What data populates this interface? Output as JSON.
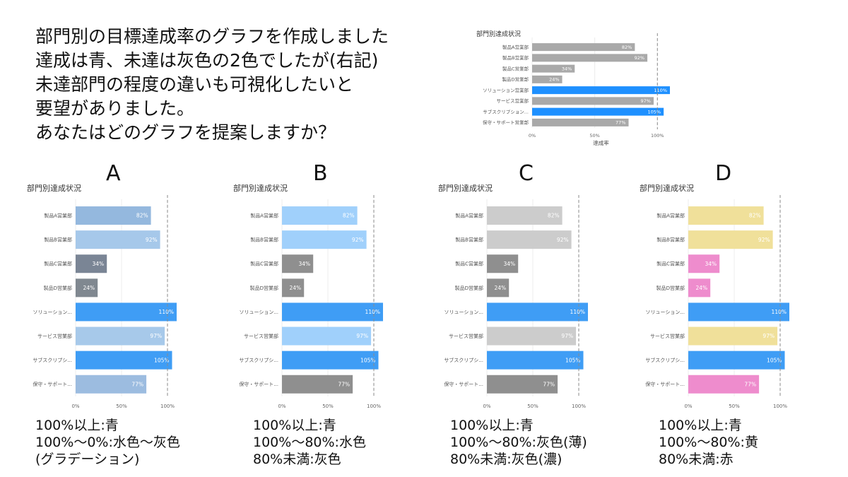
{
  "question": {
    "lines": [
      "部門別の目標達成率のグラフを作成しました",
      "達成は青、未達は灰色の2色でしたが(右記)",
      "未達部門の程度の違いも可視化したいと",
      "要望がありました。",
      "あなたはどのグラフを提案しますか？"
    ]
  },
  "chart_data": [
    {
      "id": "original",
      "type": "bar",
      "orientation": "horizontal",
      "title": "部門別達成状況",
      "xlabel": "達成率",
      "categories": [
        "製品A営業部",
        "製品B営業部",
        "製品C営業部",
        "製品D営業部",
        "ソリューション営業部",
        "サービス営業部",
        "サブスクリプション...",
        "保守・サポート営業部"
      ],
      "values": [
        82,
        92,
        34,
        24,
        110,
        97,
        105,
        77
      ],
      "data_labels": [
        "82%",
        "92%",
        "34%",
        "24%",
        "110%",
        "97%",
        "105%",
        "77%"
      ],
      "xlim": [
        0,
        110
      ],
      "xticks": [
        0,
        50,
        100
      ],
      "xtick_labels": [
        "0%",
        "50%",
        "100%"
      ],
      "reference_line": 100,
      "colors": [
        "#a9a9a9",
        "#a9a9a9",
        "#a9a9a9",
        "#a9a9a9",
        "#1e90ff",
        "#a9a9a9",
        "#1e90ff",
        "#a9a9a9"
      ]
    },
    {
      "id": "A",
      "type": "bar",
      "orientation": "horizontal",
      "title": "部門別達成状況",
      "categories": [
        "製品A営業部",
        "製品B営業部",
        "製品C営業部",
        "製品D営業部",
        "ソリューション...",
        "サービス営業部",
        "サブスクリプシ...",
        "保守・サポート..."
      ],
      "values": [
        82,
        92,
        34,
        24,
        110,
        97,
        105,
        77
      ],
      "data_labels": [
        "82%",
        "92%",
        "34%",
        "24%",
        "110%",
        "97%",
        "105%",
        "77%"
      ],
      "xlim": [
        0,
        110
      ],
      "xticks": [
        0,
        50,
        100
      ],
      "xtick_labels": [
        "0%",
        "50%",
        "100%"
      ],
      "reference_line": 100,
      "colors": [
        "#94b8de",
        "#a6c8ea",
        "#7a8595",
        "#808890",
        "#3f9df5",
        "#a7c9ea",
        "#3f9df5",
        "#9cbce0"
      ]
    },
    {
      "id": "B",
      "type": "bar",
      "orientation": "horizontal",
      "title": "部門別達成状況",
      "categories": [
        "製品A営業部",
        "製品B営業部",
        "製品C営業部",
        "製品D営業部",
        "ソリューション...",
        "サービス営業部",
        "サブスクリプシ...",
        "保守・サポート..."
      ],
      "values": [
        82,
        92,
        34,
        24,
        110,
        97,
        105,
        77
      ],
      "data_labels": [
        "82%",
        "92%",
        "34%",
        "24%",
        "110%",
        "97%",
        "105%",
        "77%"
      ],
      "xlim": [
        0,
        110
      ],
      "xticks": [
        0,
        50,
        100
      ],
      "xtick_labels": [
        "0%",
        "50%",
        "100%"
      ],
      "reference_line": 100,
      "colors": [
        "#a0d0fb",
        "#a0d0fb",
        "#8f8f8f",
        "#8f8f8f",
        "#3f9df5",
        "#a0d0fb",
        "#3f9df5",
        "#8f8f8f"
      ]
    },
    {
      "id": "C",
      "type": "bar",
      "orientation": "horizontal",
      "title": "部門別達成状況",
      "categories": [
        "製品A営業部",
        "製品B営業部",
        "製品C営業部",
        "製品D営業部",
        "ソリューション...",
        "サービス営業部",
        "サブスクリプシ...",
        "保守・サポート..."
      ],
      "values": [
        82,
        92,
        34,
        24,
        110,
        97,
        105,
        77
      ],
      "data_labels": [
        "82%",
        "92%",
        "34%",
        "24%",
        "110%",
        "97%",
        "105%",
        "77%"
      ],
      "xlim": [
        0,
        110
      ],
      "xticks": [
        0,
        50,
        100
      ],
      "xtick_labels": [
        "0%",
        "50%",
        "100%"
      ],
      "reference_line": 100,
      "colors": [
        "#cccccc",
        "#cccccc",
        "#8f8f8f",
        "#8f8f8f",
        "#3f9df5",
        "#cccccc",
        "#3f9df5",
        "#8f8f8f"
      ]
    },
    {
      "id": "D",
      "type": "bar",
      "orientation": "horizontal",
      "title": "部門別達成状況",
      "categories": [
        "製品A営業部",
        "製品B営業部",
        "製品C営業部",
        "製品D営業部",
        "ソリューション...",
        "サービス営業部",
        "サブスクリプシ...",
        "保守・サポート..."
      ],
      "values": [
        82,
        92,
        34,
        24,
        110,
        97,
        105,
        77
      ],
      "data_labels": [
        "82%",
        "92%",
        "34%",
        "24%",
        "110%",
        "97%",
        "105%",
        "77%"
      ],
      "xlim": [
        0,
        110
      ],
      "xticks": [
        0,
        50,
        100
      ],
      "xtick_labels": [
        "0%",
        "50%",
        "100%"
      ],
      "reference_line": 100,
      "colors": [
        "#f0e09a",
        "#f0e09a",
        "#ee8ccd",
        "#ee8ccd",
        "#3f9df5",
        "#f0e09a",
        "#3f9df5",
        "#ee8ccd"
      ]
    }
  ],
  "panels": [
    {
      "letter": "A",
      "legend": [
        "100%以上:青",
        "100%～0%:水色～灰色",
        " (グラデーション)"
      ]
    },
    {
      "letter": "B",
      "legend": [
        "100%以上:青",
        "100%～80%:水色",
        "80%未満:灰色"
      ]
    },
    {
      "letter": "C",
      "legend": [
        "100%以上:青",
        "100%～80%:灰色(薄)",
        "80%未満:灰色(濃)"
      ]
    },
    {
      "letter": "D",
      "legend": [
        "100%以上:青",
        "100%～80%:黄",
        "80%未満:赤"
      ]
    }
  ]
}
